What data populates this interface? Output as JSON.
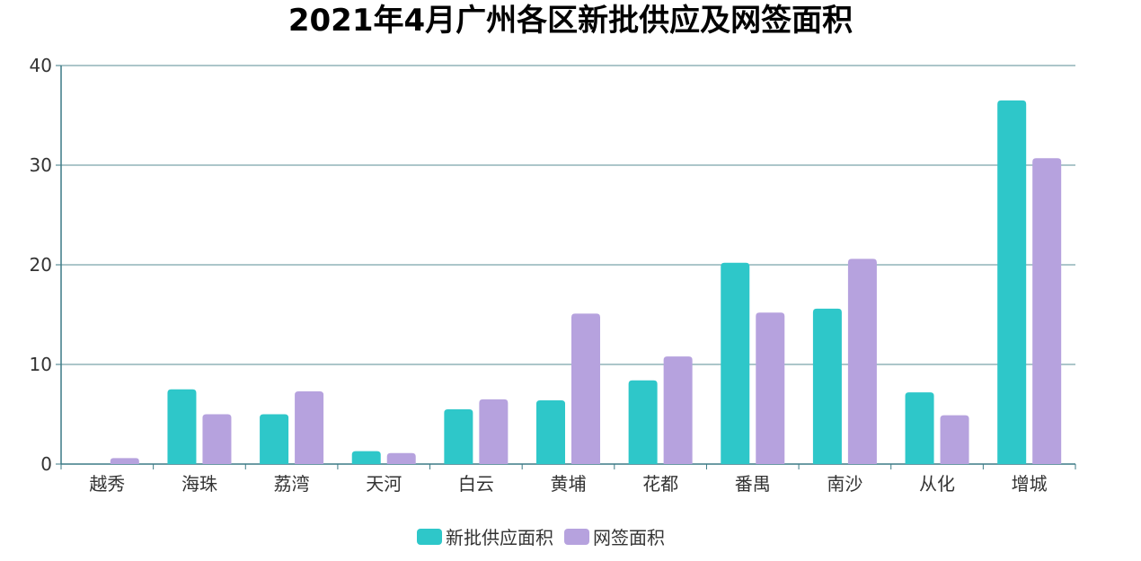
{
  "chart_data": {
    "type": "bar",
    "title": "2021年4月广州各区新批供应及网签面积",
    "categories": [
      "越秀",
      "海珠",
      "荔湾",
      "天河",
      "白云",
      "黄埔",
      "花都",
      "番禺",
      "南沙",
      "从化",
      "增城"
    ],
    "series": [
      {
        "name": "新批供应面积",
        "color": "#2ec7c9",
        "values": [
          0,
          7.5,
          5.0,
          1.3,
          5.5,
          6.4,
          8.4,
          20.2,
          15.6,
          7.2,
          36.5
        ]
      },
      {
        "name": "网签面积",
        "color": "#b6a2de",
        "values": [
          0.6,
          5.0,
          7.3,
          1.1,
          6.5,
          15.1,
          10.8,
          15.2,
          20.6,
          4.9,
          30.7
        ]
      }
    ],
    "ylim": [
      0,
      40
    ],
    "yticks": [
      0,
      10,
      20,
      30,
      40
    ],
    "grid": true,
    "legend_position": "bottom"
  }
}
